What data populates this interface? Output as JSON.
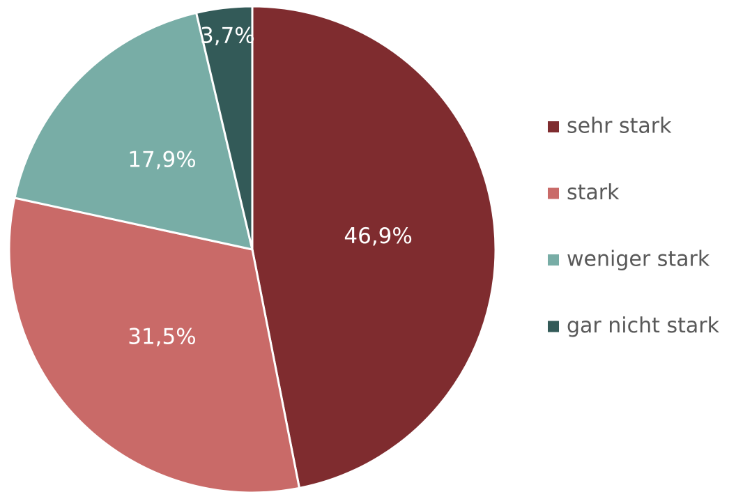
{
  "chart_data": {
    "type": "pie",
    "categories": [
      "sehr stark",
      "stark",
      "weniger stark",
      "gar nicht stark"
    ],
    "values": [
      46.9,
      31.5,
      17.9,
      3.7
    ],
    "value_labels": [
      "46,9%",
      "31,5%",
      "17,9%",
      "3,7%"
    ],
    "colors": [
      "#7f2c2f",
      "#c96a68",
      "#78ada6",
      "#335a58"
    ],
    "legend": "right"
  }
}
